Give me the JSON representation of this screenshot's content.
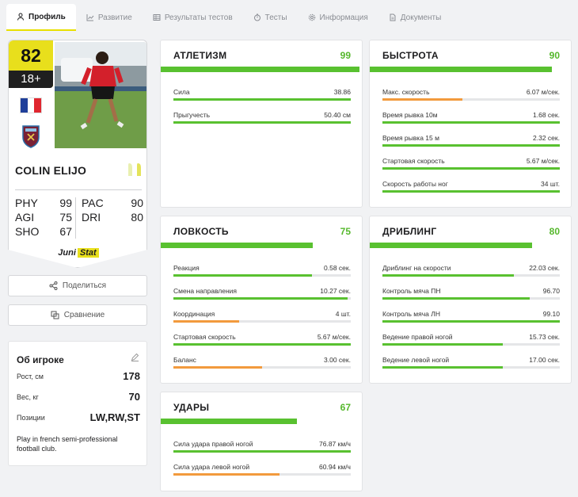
{
  "tabs": [
    {
      "label": "Профиль",
      "icon": "user-icon",
      "active": true
    },
    {
      "label": "Развитие",
      "icon": "chart-icon"
    },
    {
      "label": "Результаты тестов",
      "icon": "table-icon"
    },
    {
      "label": "Тесты",
      "icon": "stopwatch-icon"
    },
    {
      "label": "Информация",
      "icon": "gear-icon"
    },
    {
      "label": "Документы",
      "icon": "document-icon"
    }
  ],
  "card": {
    "rating": "82",
    "age": "18+",
    "name": "COLIN ELIJO",
    "stats_left": [
      {
        "k": "PHY",
        "v": "99"
      },
      {
        "k": "AGI",
        "v": "75"
      },
      {
        "k": "SHO",
        "v": "67"
      }
    ],
    "stats_right": [
      {
        "k": "PAC",
        "v": "90"
      },
      {
        "k": "DRI",
        "v": "80"
      }
    ],
    "brand_a": "Juni",
    "brand_b": "Stat",
    "colors": {
      "rating_bg": "#e8df1c",
      "age_bg": "#1f1f1f"
    }
  },
  "actions": {
    "share": "Поделиться",
    "compare": "Сравнение"
  },
  "about": {
    "title": "Об игроке",
    "rows": [
      {
        "k": "Рост, см",
        "v": "178"
      },
      {
        "k": "Вес, кг",
        "v": "70"
      },
      {
        "k": "Позиции",
        "v": "LW,RW,ST"
      }
    ],
    "description": "Play in french semi-professional football club."
  },
  "panels": {
    "athletic": {
      "title": "АТЛЕТИЗМ",
      "score": "99",
      "level": 0.98,
      "metrics": [
        {
          "label": "Сила",
          "value": "38.86",
          "level": 1.0,
          "color": "green"
        },
        {
          "label": "Прыгучесть",
          "value": "50.40 см",
          "level": 1.0,
          "color": "green"
        }
      ]
    },
    "speed": {
      "title": "БЫСТРОТА",
      "score": "90",
      "level": 0.9,
      "metrics": [
        {
          "label": "Макс. скорость",
          "value": "6.07 м/сек.",
          "level": 0.45,
          "color": "orange"
        },
        {
          "label": "Время рывка 10м",
          "value": "1.68 сек.",
          "level": 1.0,
          "color": "green"
        },
        {
          "label": "Время рывка 15 м",
          "value": "2.32 сек.",
          "level": 1.0,
          "color": "green"
        },
        {
          "label": "Стартовая скорость",
          "value": "5.67 м/сек.",
          "level": 1.0,
          "color": "green"
        },
        {
          "label": "Скорость работы ног",
          "value": "34 шт.",
          "level": 1.0,
          "color": "green"
        }
      ]
    },
    "agility": {
      "title": "ЛОВКОСТЬ",
      "score": "75",
      "level": 0.75,
      "metrics": [
        {
          "label": "Реакция",
          "value": "0.58 сек.",
          "level": 0.78,
          "color": "green"
        },
        {
          "label": "Смена направления",
          "value": "10.27 сек.",
          "level": 0.98,
          "color": "green"
        },
        {
          "label": "Координация",
          "value": "4 шт.",
          "level": 0.37,
          "color": "orange"
        },
        {
          "label": "Стартовая скорость",
          "value": "5.67 м/сек.",
          "level": 1.0,
          "color": "green"
        },
        {
          "label": "Баланс",
          "value": "3.00 сек.",
          "level": 0.5,
          "color": "orange"
        }
      ]
    },
    "dribbling": {
      "title": "ДРИБЛИНГ",
      "score": "80",
      "level": 0.8,
      "metrics": [
        {
          "label": "Дриблинг на скорости",
          "value": "22.03 сек.",
          "level": 0.74,
          "color": "green"
        },
        {
          "label": "Контроль мяча ПН",
          "value": "96.70",
          "level": 0.83,
          "color": "green"
        },
        {
          "label": "Контроль мяча ЛН",
          "value": "99.10",
          "level": 1.0,
          "color": "green"
        },
        {
          "label": "Ведение правой ногой",
          "value": "15.73 сек.",
          "level": 0.68,
          "color": "green"
        },
        {
          "label": "Ведение левой ногой",
          "value": "17.00 сек.",
          "level": 0.68,
          "color": "green"
        }
      ]
    },
    "shots": {
      "title": "УДАРЫ",
      "score": "67",
      "level": 0.67,
      "metrics": [
        {
          "label": "Сила удара правой ногой",
          "value": "76.87 км/ч",
          "level": 1.0,
          "color": "green"
        },
        {
          "label": "Сила удара левой ногой",
          "value": "60.94 км/ч",
          "level": 0.6,
          "color": "orange"
        }
      ]
    }
  },
  "colors": {
    "accent_yellow": "#e8df1c",
    "green": "#59c130",
    "orange": "#f29a3d",
    "score_green": "#56b82d"
  }
}
